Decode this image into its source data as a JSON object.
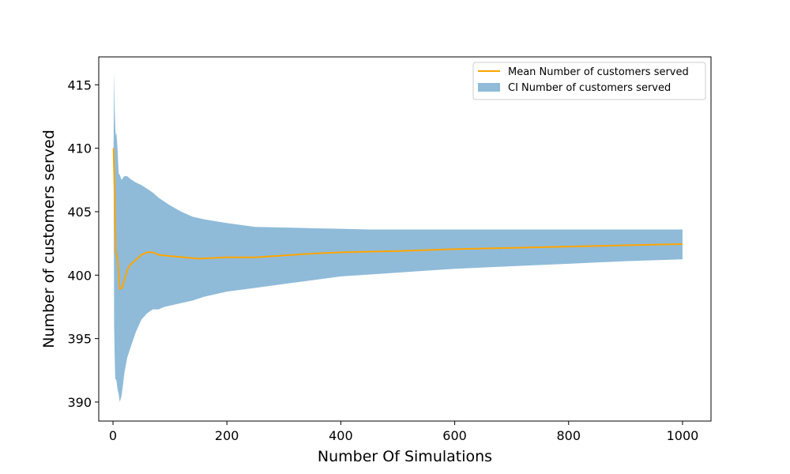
{
  "chart_data": {
    "type": "line",
    "title": "",
    "xlabel": "Number Of Simulations",
    "ylabel": "Number of customers served",
    "xlim": [
      -25,
      1050
    ],
    "ylim": [
      388.5,
      417.2
    ],
    "xticks": [
      0,
      200,
      400,
      600,
      800,
      1000
    ],
    "yticks": [
      390,
      395,
      400,
      405,
      410,
      415
    ],
    "grid": false,
    "legend_position": "top-right",
    "colors": {
      "mean": "#ffa500",
      "ci": "#1f77b4"
    },
    "series": [
      {
        "name": "Mean Number of customers served",
        "kind": "line",
        "x": [
          1,
          3,
          5,
          8,
          12,
          16,
          20,
          25,
          30,
          40,
          50,
          60,
          70,
          80,
          100,
          150,
          200,
          250,
          300,
          350,
          400,
          500,
          600,
          700,
          800,
          900,
          1000
        ],
        "y": [
          410.0,
          406.0,
          401.8,
          401.3,
          398.9,
          399.0,
          399.6,
          400.4,
          400.8,
          401.2,
          401.6,
          401.8,
          401.8,
          401.6,
          401.5,
          401.3,
          401.4,
          401.4,
          401.55,
          401.7,
          401.8,
          401.9,
          402.05,
          402.15,
          402.25,
          402.35,
          402.45
        ]
      },
      {
        "name": "CI Number of customers served",
        "kind": "band",
        "x": [
          1,
          2,
          3,
          4,
          5,
          6,
          8,
          10,
          12,
          15,
          18,
          20,
          25,
          30,
          40,
          50,
          60,
          70,
          80,
          90,
          100,
          120,
          140,
          160,
          200,
          250,
          300,
          350,
          400,
          450,
          500,
          600,
          700,
          800,
          900,
          1000
        ],
        "lower": [
          410.0,
          396.0,
          393.5,
          391.8,
          391.8,
          391.7,
          391.0,
          390.6,
          390.0,
          390.5,
          391.5,
          392.3,
          393.5,
          394.2,
          395.5,
          396.5,
          397.0,
          397.3,
          397.3,
          397.5,
          397.6,
          397.8,
          398.0,
          398.3,
          398.7,
          399.0,
          399.3,
          399.6,
          399.9,
          400.05,
          400.2,
          400.5,
          400.7,
          400.9,
          401.1,
          401.25
        ],
        "upper": [
          410.0,
          416.0,
          413.0,
          411.6,
          411.0,
          411.2,
          410.0,
          408.0,
          407.9,
          407.5,
          407.7,
          407.8,
          407.8,
          407.6,
          407.3,
          407.1,
          406.8,
          406.5,
          406.1,
          405.8,
          405.5,
          405.0,
          404.6,
          404.4,
          404.1,
          403.8,
          403.75,
          403.7,
          403.65,
          403.6,
          403.6,
          403.6,
          403.6,
          403.6,
          403.6,
          403.6
        ]
      }
    ]
  }
}
